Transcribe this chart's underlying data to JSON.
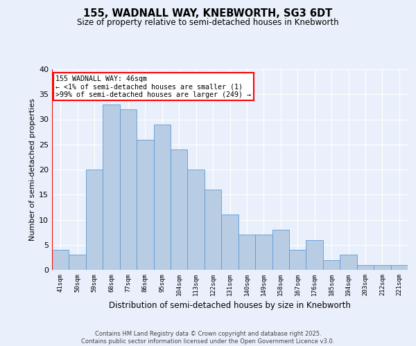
{
  "title1": "155, WADNALL WAY, KNEBWORTH, SG3 6DT",
  "title2": "Size of property relative to semi-detached houses in Knebworth",
  "xlabel": "Distribution of semi-detached houses by size in Knebworth",
  "ylabel": "Number of semi-detached properties",
  "categories": [
    "41sqm",
    "50sqm",
    "59sqm",
    "68sqm",
    "77sqm",
    "86sqm",
    "95sqm",
    "104sqm",
    "113sqm",
    "122sqm",
    "131sqm",
    "140sqm",
    "149sqm",
    "158sqm",
    "167sqm",
    "176sqm",
    "185sqm",
    "194sqm",
    "203sqm",
    "212sqm",
    "221sqm"
  ],
  "values": [
    4,
    3,
    20,
    33,
    32,
    26,
    29,
    24,
    20,
    16,
    11,
    7,
    7,
    8,
    4,
    6,
    2,
    3,
    1,
    1,
    1
  ],
  "bar_color": "#b8cce4",
  "bar_edge_color": "#5b9bd5",
  "highlight_color": "#ff0000",
  "annotation_title": "155 WADNALL WAY: 46sqm",
  "annotation_line1": "← <1% of semi-detached houses are smaller (1)",
  "annotation_line2": ">99% of semi-detached houses are larger (249) →",
  "ylim": [
    0,
    40
  ],
  "yticks": [
    0,
    5,
    10,
    15,
    20,
    25,
    30,
    35,
    40
  ],
  "footer1": "Contains HM Land Registry data © Crown copyright and database right 2025.",
  "footer2": "Contains public sector information licensed under the Open Government Licence v3.0.",
  "bg_color": "#eaf0fb",
  "plot_bg_color": "#eaf0fb"
}
